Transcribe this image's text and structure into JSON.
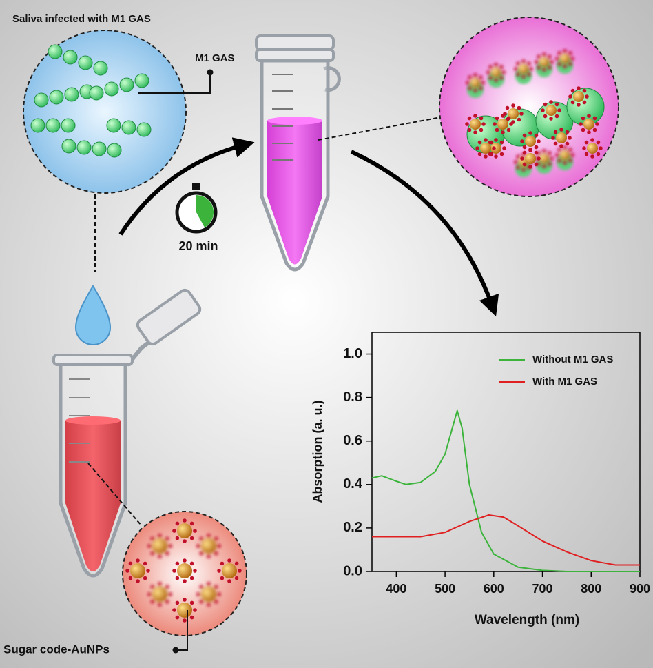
{
  "labels": {
    "saliva": "Saliva infected with M1 GAS",
    "bacteria": "M1 GAS",
    "timer": "20 min",
    "aunps": "Sugar code-AuNPs"
  },
  "chart_data": {
    "type": "line",
    "x_label": "Wavelength (nm)",
    "y_label": "Absorption (a. u.)",
    "xlim": [
      350,
      900
    ],
    "ylim": [
      0,
      1.1
    ],
    "xticks": [
      400,
      500,
      600,
      700,
      800,
      900
    ],
    "yticks": [
      {
        "value": 0,
        "label": "0.0"
      },
      0.2,
      0.4,
      0.6,
      0.8,
      {
        "value": 1,
        "label": "1.0"
      }
    ],
    "series": [
      {
        "name": "Without M1 GAS",
        "color": "#3cb43c",
        "x": [
          350,
          370,
          400,
          420,
          450,
          480,
          500,
          515,
          525,
          535,
          550,
          575,
          600,
          650,
          700,
          750,
          800,
          900
        ],
        "values": [
          0.43,
          0.44,
          0.415,
          0.4,
          0.41,
          0.46,
          0.54,
          0.66,
          0.74,
          0.66,
          0.4,
          0.18,
          0.08,
          0.02,
          0.005,
          0,
          0,
          0
        ]
      },
      {
        "name": "With M1 GAS",
        "color": "#e02020",
        "x": [
          350,
          400,
          450,
          500,
          550,
          590,
          620,
          650,
          700,
          750,
          800,
          850,
          900
        ],
        "values": [
          0.16,
          0.16,
          0.16,
          0.18,
          0.23,
          0.26,
          0.25,
          0.21,
          0.14,
          0.09,
          0.05,
          0.03,
          0.03
        ]
      }
    ]
  }
}
